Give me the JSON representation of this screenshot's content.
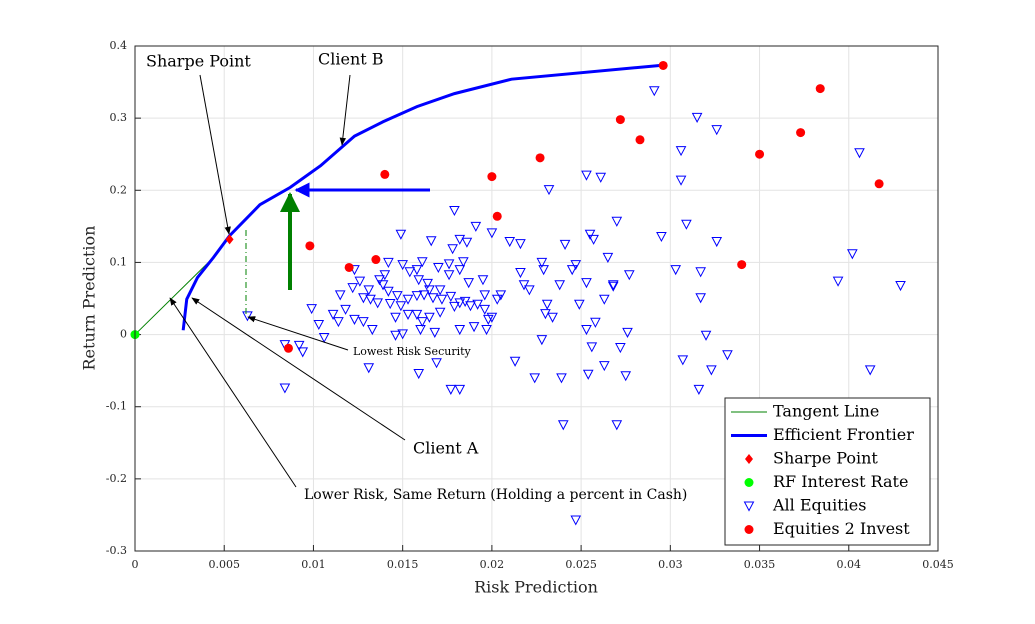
{
  "chart_data": {
    "type": "scatter",
    "xlabel": "Risk Prediction",
    "ylabel": "Return Prediction",
    "xlim": [
      0,
      0.045
    ],
    "ylim": [
      -0.3,
      0.4
    ],
    "xticks": [
      0,
      0.005,
      0.01,
      0.015,
      0.02,
      0.025,
      0.03,
      0.035,
      0.04,
      0.045
    ],
    "yticks": [
      -0.3,
      -0.2,
      -0.1,
      0,
      0.1,
      0.2,
      0.3,
      0.4
    ],
    "grid": true,
    "legend": "southeast",
    "annotations": [
      "Sharpe Point",
      "Client B",
      "Lowest Risk Security",
      "Client A",
      "Lower Risk, Same Return (Holding a percent in Cash)"
    ],
    "series": [
      {
        "name": "Tangent Line",
        "color": "#008000",
        "mode": "line",
        "width": 1,
        "x": [
          0,
          0.0044
        ],
        "y": [
          0,
          0.107
        ]
      },
      {
        "name": "Efficient Frontier",
        "color": "#0000ff",
        "mode": "line",
        "width": 3,
        "x": [
          0.0027,
          0.0029,
          0.0035,
          0.0044,
          0.0053,
          0.007,
          0.0087,
          0.0104,
          0.0123,
          0.0139,
          0.0158,
          0.0179,
          0.0211,
          0.0294
        ],
        "y": [
          0.006,
          0.049,
          0.079,
          0.107,
          0.137,
          0.18,
          0.204,
          0.234,
          0.275,
          0.295,
          0.316,
          0.334,
          0.354,
          0.373
        ]
      },
      {
        "name": "Sharpe Point",
        "color": "#ff0000",
        "mode": "diamond",
        "x": [
          0.0053
        ],
        "y": [
          0.132
        ]
      },
      {
        "name": "RF Interest Rate",
        "color": "#00ff00",
        "mode": "dot",
        "x": [
          0
        ],
        "y": [
          0
        ]
      },
      {
        "name": "All Equities",
        "color": "#0000ff",
        "mode": "triangle",
        "x": [
          0.0291,
          0.0315,
          0.0326,
          0.0306,
          0.0406,
          0.0306,
          0.0232,
          0.0253,
          0.0261,
          0.0179,
          0.0191,
          0.02,
          0.0216,
          0.027,
          0.0295,
          0.0309,
          0.0149,
          0.0166,
          0.0178,
          0.0182,
          0.0186,
          0.021,
          0.0241,
          0.0255,
          0.0257,
          0.0326,
          0.0303,
          0.0317,
          0.0402,
          0.0265,
          0.0247,
          0.0228,
          0.0229,
          0.0216,
          0.0195,
          0.0184,
          0.0176,
          0.017,
          0.0161,
          0.0158,
          0.015,
          0.0142,
          0.0137,
          0.0139,
          0.0154,
          0.0159,
          0.0164,
          0.0165,
          0.0171,
          0.0176,
          0.0182,
          0.0187,
          0.0196,
          0.0205,
          0.0218,
          0.0221,
          0.0238,
          0.0245,
          0.0253,
          0.0268,
          0.0277,
          0.0268,
          0.0263,
          0.0123,
          0.0126,
          0.0131,
          0.0115,
          0.0118,
          0.0122,
          0.0128,
          0.0132,
          0.0136,
          0.014,
          0.0142,
          0.0147,
          0.0149,
          0.0153,
          0.0158,
          0.0162,
          0.0167,
          0.0172,
          0.0177,
          0.0182,
          0.0185,
          0.0188,
          0.0192,
          0.0196,
          0.02,
          0.0203,
          0.0198,
          0.0179,
          0.0171,
          0.0165,
          0.0161,
          0.0158,
          0.0153,
          0.0146,
          0.0143,
          0.0133,
          0.0128,
          0.0123,
          0.0114,
          0.0111,
          0.0099,
          0.0103,
          0.0106,
          0.0092,
          0.0094,
          0.0084,
          0.0084,
          0.0146,
          0.015,
          0.016,
          0.0168,
          0.0182,
          0.019,
          0.0197,
          0.0213,
          0.0228,
          0.0231,
          0.0234,
          0.0253,
          0.0258,
          0.0276,
          0.0256,
          0.0272,
          0.023,
          0.0249,
          0.0317,
          0.032,
          0.0332,
          0.0323,
          0.0316,
          0.0307,
          0.0394,
          0.0412,
          0.0429,
          0.0159,
          0.0169,
          0.0131,
          0.0177,
          0.0182,
          0.0224,
          0.0239,
          0.0254,
          0.0263,
          0.0275,
          0.024,
          0.027,
          0.0247,
          0.0063
        ],
        "y": [
          0.338,
          0.301,
          0.284,
          0.255,
          0.252,
          0.214,
          0.201,
          0.221,
          0.218,
          0.172,
          0.15,
          0.141,
          0.126,
          0.157,
          0.136,
          0.153,
          0.139,
          0.13,
          0.119,
          0.132,
          0.128,
          0.129,
          0.125,
          0.139,
          0.132,
          0.129,
          0.09,
          0.087,
          0.112,
          0.107,
          0.097,
          0.1,
          0.09,
          0.086,
          0.076,
          0.101,
          0.098,
          0.093,
          0.101,
          0.09,
          0.097,
          0.1,
          0.076,
          0.069,
          0.087,
          0.076,
          0.071,
          0.062,
          0.062,
          0.083,
          0.09,
          0.072,
          0.055,
          0.055,
          0.069,
          0.062,
          0.069,
          0.09,
          0.072,
          0.069,
          0.083,
          0.067,
          0.049,
          0.09,
          0.074,
          0.062,
          0.055,
          0.035,
          0.065,
          0.051,
          0.049,
          0.044,
          0.083,
          0.06,
          0.054,
          0.04,
          0.049,
          0.054,
          0.055,
          0.051,
          0.049,
          0.053,
          0.044,
          0.046,
          0.04,
          0.042,
          0.035,
          0.024,
          0.049,
          0.021,
          0.039,
          0.031,
          0.024,
          0.018,
          0.028,
          0.028,
          0.024,
          0.043,
          0.007,
          0.018,
          0.021,
          0.018,
          0.028,
          0.036,
          0.014,
          -0.004,
          -0.015,
          -0.024,
          -0.014,
          -0.074,
          -0.001,
          0.001,
          0.007,
          0.003,
          0.007,
          0.011,
          0.007,
          -0.037,
          -0.007,
          0.042,
          0.024,
          0.007,
          0.017,
          0.003,
          -0.017,
          -0.018,
          0.029,
          0.042,
          0.051,
          -0.001,
          -0.028,
          -0.049,
          -0.076,
          -0.035,
          0.074,
          -0.049,
          0.068,
          -0.054,
          -0.039,
          -0.046,
          -0.076,
          -0.076,
          -0.06,
          -0.06,
          -0.055,
          -0.043,
          -0.057,
          -0.125,
          -0.125,
          -0.257,
          0.026
        ]
      },
      {
        "name": "Equities 2 Invest",
        "color": "#ff0000",
        "mode": "dot",
        "x": [
          0.0296,
          0.0384,
          0.0272,
          0.0283,
          0.0373,
          0.035,
          0.0227,
          0.014,
          0.02,
          0.0417,
          0.0203,
          0.0098,
          0.0135,
          0.012,
          0.034,
          0.0086
        ],
        "y": [
          0.373,
          0.341,
          0.298,
          0.27,
          0.28,
          0.25,
          0.245,
          0.222,
          0.219,
          0.209,
          0.164,
          0.123,
          0.104,
          0.093,
          0.097,
          -0.019
        ]
      }
    ]
  }
}
